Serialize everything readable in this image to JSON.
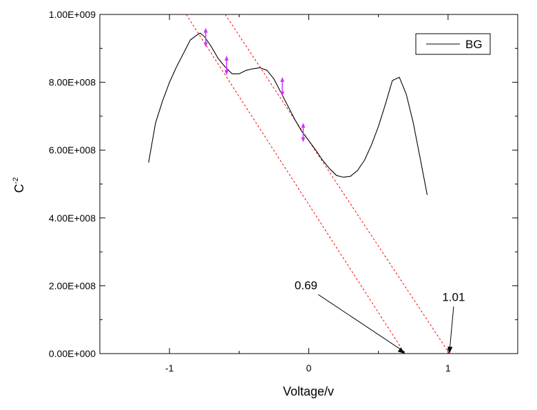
{
  "chart_data": {
    "type": "line",
    "xlabel": "Voltage/v",
    "ylabel": "C",
    "ylabel_superscript": "-2",
    "xlim": [
      -1.5,
      1.5
    ],
    "ylim": [
      0,
      1000000000
    ],
    "x_ticks": [
      {
        "value": -1,
        "label": "-1"
      },
      {
        "value": 0,
        "label": "0"
      },
      {
        "value": 1,
        "label": "1"
      }
    ],
    "y_ticks": [
      {
        "value": 0,
        "label": "0.00E+000"
      },
      {
        "value": 200000000,
        "label": "2.00E+008"
      },
      {
        "value": 400000000,
        "label": "4.00E+008"
      },
      {
        "value": 600000000,
        "label": "6.00E+008"
      },
      {
        "value": 800000000,
        "label": "8.00E+008"
      },
      {
        "value": 1000000000,
        "label": "1.00E+009"
      }
    ],
    "legend": {
      "position": "top-right",
      "entries": [
        "BG"
      ]
    },
    "grid": false,
    "series": [
      {
        "name": "BG",
        "color": "#000000",
        "x": [
          -1.15,
          -1.1,
          -1.05,
          -1.0,
          -0.95,
          -0.9,
          -0.85,
          -0.8,
          -0.78,
          -0.75,
          -0.7,
          -0.65,
          -0.6,
          -0.55,
          -0.5,
          -0.45,
          -0.4,
          -0.35,
          -0.3,
          -0.25,
          -0.2,
          -0.15,
          -0.1,
          -0.05,
          0.0,
          0.05,
          0.1,
          0.15,
          0.2,
          0.25,
          0.3,
          0.35,
          0.4,
          0.45,
          0.5,
          0.55,
          0.6,
          0.65,
          0.7,
          0.75,
          0.8,
          0.85
        ],
        "y": [
          563000000,
          680000000,
          745000000,
          800000000,
          845000000,
          885000000,
          925000000,
          940000000,
          945000000,
          935000000,
          905000000,
          870000000,
          845000000,
          825000000,
          825000000,
          835000000,
          840000000,
          843000000,
          835000000,
          810000000,
          770000000,
          730000000,
          690000000,
          655000000,
          628000000,
          600000000,
          570000000,
          545000000,
          525000000,
          520000000,
          523000000,
          540000000,
          570000000,
          615000000,
          670000000,
          735000000,
          805000000,
          815000000,
          765000000,
          680000000,
          575000000,
          468000000
        ]
      }
    ],
    "tangent_lines": [
      {
        "x": [
          -0.88,
          0.69
        ],
        "y": [
          1000000000,
          0
        ],
        "color": "#ff0000",
        "style": "dashed"
      },
      {
        "x": [
          -0.6,
          1.01
        ],
        "y": [
          1000000000,
          0
        ],
        "color": "#ff0000",
        "style": "dashed"
      }
    ],
    "markers": [
      {
        "x": -0.74,
        "y": 932000000
      },
      {
        "x": -0.59,
        "y": 850000000
      },
      {
        "x": -0.19,
        "y": 787000000
      },
      {
        "x": -0.04,
        "y": 652000000
      }
    ],
    "marker_color": "#cc33ff",
    "annotations": [
      {
        "text": "0.69",
        "point_x": 0.69,
        "point_y": 0,
        "text_x": -0.02,
        "text_y": 190000000
      },
      {
        "text": "1.01",
        "point_x": 1.01,
        "point_y": 0,
        "text_x": 1.04,
        "text_y": 155000000
      }
    ]
  }
}
